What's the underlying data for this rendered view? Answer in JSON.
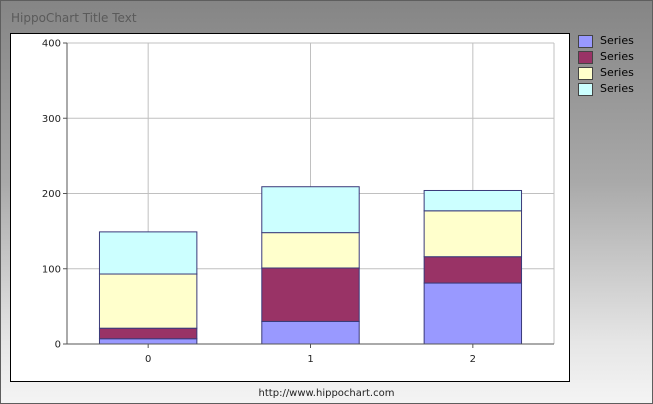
{
  "window": {
    "title": "HippoChart Title Text",
    "footer": "http://www.hippochart.com"
  },
  "chart_data": {
    "type": "bar",
    "stacked": true,
    "categories": [
      "0",
      "1",
      "2"
    ],
    "ylim": [
      0,
      400
    ],
    "yticks": [
      "0",
      "100",
      "200",
      "300",
      "400"
    ],
    "grid": true,
    "legend_position": "right",
    "series": [
      {
        "name": "Series",
        "color": "#9999ff",
        "values": [
          7,
          30,
          81
        ]
      },
      {
        "name": "Series",
        "color": "#993366",
        "values": [
          14,
          71,
          35
        ]
      },
      {
        "name": "Series",
        "color": "#ffffcc",
        "values": [
          72,
          47,
          61
        ]
      },
      {
        "name": "Series",
        "color": "#ccffff",
        "values": [
          56,
          61,
          27
        ]
      }
    ]
  }
}
